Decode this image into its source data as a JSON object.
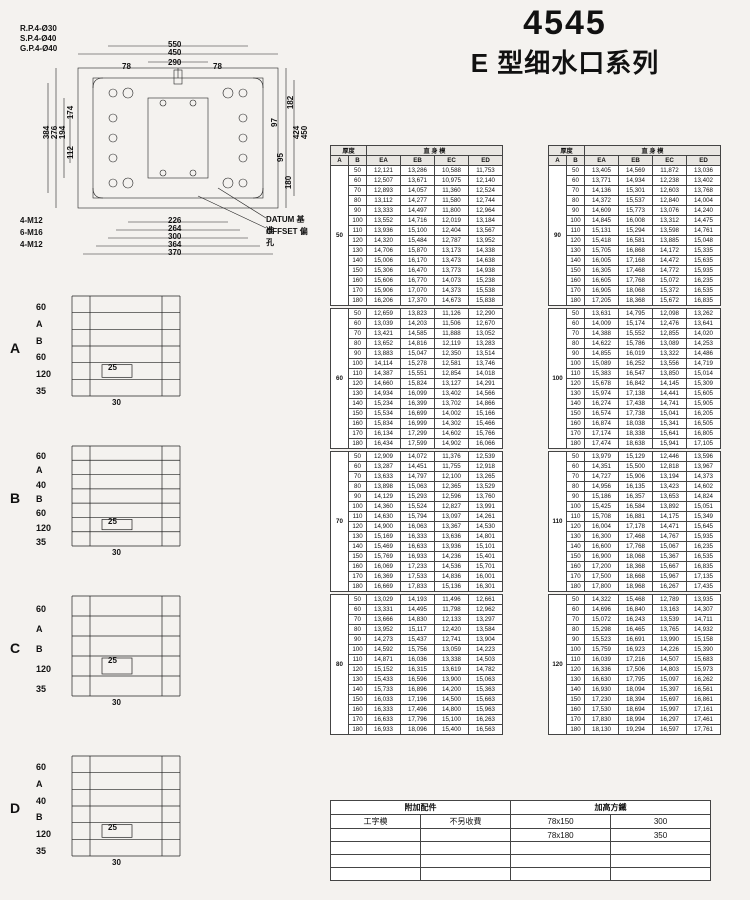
{
  "title": {
    "number": "4545",
    "text": "E 型细水口系列"
  },
  "drawing": {
    "notes": [
      "R.P.4-Ø30",
      "S.P.4-Ø40",
      "G.P.4-Ø40"
    ],
    "datum_label": "DATUM 基准",
    "offset_label": "OFFSET 偏孔",
    "top_dims": [
      "550",
      "450",
      "290"
    ],
    "inner_dims": [
      "78",
      "78"
    ],
    "left_dims": [
      "384",
      "276",
      "194",
      "174",
      "112"
    ],
    "right_dims": [
      "180",
      "95",
      "424",
      "450",
      "97",
      "182"
    ],
    "bottom_dims": [
      "226",
      "264",
      "300",
      "364",
      "370"
    ],
    "bolt_labels": [
      "4-M12",
      "6-M16",
      "4-M12"
    ]
  },
  "variants": [
    {
      "id": "A",
      "rows": [
        "60",
        "A",
        "B",
        "60",
        "120",
        "35"
      ],
      "inner25": "25",
      "inner30": "30"
    },
    {
      "id": "B",
      "rows": [
        "60",
        "A",
        "40",
        "B",
        "60",
        "120",
        "35"
      ],
      "inner25": "25",
      "inner30": "30"
    },
    {
      "id": "C",
      "rows": [
        "60",
        "A",
        "B",
        "120",
        "35"
      ],
      "inner25": "25",
      "inner30": "30"
    },
    {
      "id": "D",
      "rows": [
        "60",
        "A",
        "40",
        "B",
        "120",
        "35"
      ],
      "inner25": "25",
      "inner30": "30"
    }
  ],
  "table_header": {
    "thickness": "厚度",
    "span": "直 身 模",
    "cols": [
      "A",
      "B",
      "EA",
      "EB",
      "EC",
      "ED"
    ]
  },
  "left_table": {
    "groups": [
      {
        "a": 50,
        "rows": [
          [
            50,
            "12,121",
            "13,286",
            "10,588",
            "11,753"
          ],
          [
            60,
            "12,507",
            "13,671",
            "10,975",
            "12,140"
          ],
          [
            70,
            "12,893",
            "14,057",
            "11,360",
            "12,524"
          ],
          [
            80,
            "13,112",
            "14,277",
            "11,580",
            "12,744"
          ],
          [
            90,
            "13,333",
            "14,497",
            "11,800",
            "12,964"
          ],
          [
            100,
            "13,552",
            "14,716",
            "12,019",
            "13,184"
          ],
          [
            110,
            "13,936",
            "15,100",
            "12,404",
            "13,567"
          ],
          [
            120,
            "14,320",
            "15,484",
            "12,787",
            "13,952"
          ],
          [
            130,
            "14,706",
            "15,870",
            "13,173",
            "14,338"
          ],
          [
            140,
            "15,006",
            "16,170",
            "13,473",
            "14,638"
          ],
          [
            150,
            "15,306",
            "16,470",
            "13,773",
            "14,938"
          ],
          [
            160,
            "15,606",
            "16,770",
            "14,073",
            "15,238"
          ],
          [
            170,
            "15,906",
            "17,070",
            "14,373",
            "15,538"
          ],
          [
            180,
            "16,206",
            "17,370",
            "14,673",
            "15,838"
          ]
        ]
      },
      {
        "a": 60,
        "rows": [
          [
            50,
            "12,659",
            "13,823",
            "11,126",
            "12,290"
          ],
          [
            60,
            "13,039",
            "14,203",
            "11,506",
            "12,670"
          ],
          [
            70,
            "13,421",
            "14,585",
            "11,888",
            "13,052"
          ],
          [
            80,
            "13,652",
            "14,816",
            "12,119",
            "13,283"
          ],
          [
            90,
            "13,883",
            "15,047",
            "12,350",
            "13,514"
          ],
          [
            100,
            "14,114",
            "15,278",
            "12,581",
            "13,746"
          ],
          [
            110,
            "14,387",
            "15,551",
            "12,854",
            "14,018"
          ],
          [
            120,
            "14,660",
            "15,824",
            "13,127",
            "14,291"
          ],
          [
            130,
            "14,934",
            "16,099",
            "13,402",
            "14,566"
          ],
          [
            140,
            "15,234",
            "16,399",
            "13,702",
            "14,866"
          ],
          [
            150,
            "15,534",
            "16,699",
            "14,002",
            "15,166"
          ],
          [
            160,
            "15,834",
            "16,999",
            "14,302",
            "15,466"
          ],
          [
            170,
            "16,134",
            "17,299",
            "14,602",
            "15,766"
          ],
          [
            180,
            "16,434",
            "17,599",
            "14,902",
            "16,066"
          ]
        ]
      },
      {
        "a": 70,
        "rows": [
          [
            50,
            "12,909",
            "14,072",
            "11,376",
            "12,539"
          ],
          [
            60,
            "13,287",
            "14,451",
            "11,755",
            "12,918"
          ],
          [
            70,
            "13,633",
            "14,797",
            "12,100",
            "13,265"
          ],
          [
            80,
            "13,898",
            "15,063",
            "12,365",
            "13,529"
          ],
          [
            90,
            "14,129",
            "15,293",
            "12,596",
            "13,760"
          ],
          [
            100,
            "14,360",
            "15,524",
            "12,827",
            "13,991"
          ],
          [
            110,
            "14,630",
            "15,794",
            "13,097",
            "14,261"
          ],
          [
            120,
            "14,900",
            "16,063",
            "13,367",
            "14,530"
          ],
          [
            130,
            "15,169",
            "16,333",
            "13,636",
            "14,801"
          ],
          [
            140,
            "15,469",
            "16,633",
            "13,936",
            "15,101"
          ],
          [
            150,
            "15,769",
            "16,933",
            "14,236",
            "15,401"
          ],
          [
            160,
            "16,069",
            "17,233",
            "14,536",
            "15,701"
          ],
          [
            170,
            "16,369",
            "17,533",
            "14,836",
            "16,001"
          ],
          [
            180,
            "16,669",
            "17,833",
            "15,136",
            "16,301"
          ]
        ]
      },
      {
        "a": 80,
        "rows": [
          [
            50,
            "13,029",
            "14,193",
            "11,496",
            "12,661"
          ],
          [
            60,
            "13,331",
            "14,495",
            "11,798",
            "12,962"
          ],
          [
            70,
            "13,666",
            "14,830",
            "12,133",
            "13,297"
          ],
          [
            80,
            "13,952",
            "15,117",
            "12,420",
            "13,584"
          ],
          [
            90,
            "14,273",
            "15,437",
            "12,741",
            "13,904"
          ],
          [
            100,
            "14,592",
            "15,756",
            "13,059",
            "14,223"
          ],
          [
            110,
            "14,871",
            "16,036",
            "13,338",
            "14,503"
          ],
          [
            120,
            "15,152",
            "16,315",
            "13,619",
            "14,782"
          ],
          [
            130,
            "15,433",
            "16,596",
            "13,900",
            "15,063"
          ],
          [
            140,
            "15,733",
            "16,896",
            "14,200",
            "15,363"
          ],
          [
            150,
            "16,033",
            "17,196",
            "14,500",
            "15,663"
          ],
          [
            160,
            "16,333",
            "17,496",
            "14,800",
            "15,963"
          ],
          [
            170,
            "16,633",
            "17,796",
            "15,100",
            "16,263"
          ],
          [
            180,
            "16,933",
            "18,096",
            "15,400",
            "16,563"
          ]
        ]
      }
    ]
  },
  "right_table": {
    "groups": [
      {
        "a": 90,
        "rows": [
          [
            50,
            "13,405",
            "14,569",
            "11,872",
            "13,036"
          ],
          [
            60,
            "13,771",
            "14,934",
            "12,238",
            "13,402"
          ],
          [
            70,
            "14,136",
            "15,301",
            "12,603",
            "13,768"
          ],
          [
            80,
            "14,372",
            "15,537",
            "12,840",
            "14,004"
          ],
          [
            90,
            "14,609",
            "15,773",
            "13,076",
            "14,240"
          ],
          [
            100,
            "14,845",
            "16,008",
            "13,312",
            "14,475"
          ],
          [
            110,
            "15,131",
            "15,294",
            "13,598",
            "14,761"
          ],
          [
            120,
            "15,418",
            "16,581",
            "13,885",
            "15,048"
          ],
          [
            130,
            "15,705",
            "16,868",
            "14,172",
            "15,335"
          ],
          [
            140,
            "16,005",
            "17,168",
            "14,472",
            "15,635"
          ],
          [
            150,
            "16,305",
            "17,468",
            "14,772",
            "15,935"
          ],
          [
            160,
            "16,605",
            "17,768",
            "15,072",
            "16,235"
          ],
          [
            170,
            "16,905",
            "18,068",
            "15,372",
            "16,535"
          ],
          [
            180,
            "17,205",
            "18,368",
            "15,672",
            "16,835"
          ]
        ]
      },
      {
        "a": 100,
        "rows": [
          [
            50,
            "13,631",
            "14,795",
            "12,098",
            "13,262"
          ],
          [
            60,
            "14,009",
            "15,174",
            "12,476",
            "13,641"
          ],
          [
            70,
            "14,388",
            "15,552",
            "12,855",
            "14,020"
          ],
          [
            80,
            "14,622",
            "15,786",
            "13,089",
            "14,253"
          ],
          [
            90,
            "14,855",
            "16,019",
            "13,322",
            "14,486"
          ],
          [
            100,
            "15,089",
            "16,252",
            "13,556",
            "14,719"
          ],
          [
            110,
            "15,383",
            "16,547",
            "13,850",
            "15,014"
          ],
          [
            120,
            "15,678",
            "16,842",
            "14,145",
            "15,309"
          ],
          [
            130,
            "15,974",
            "17,138",
            "14,441",
            "15,605"
          ],
          [
            140,
            "16,274",
            "17,438",
            "14,741",
            "15,905"
          ],
          [
            150,
            "16,574",
            "17,738",
            "15,041",
            "16,205"
          ],
          [
            160,
            "16,874",
            "18,038",
            "15,341",
            "16,505"
          ],
          [
            170,
            "17,174",
            "18,338",
            "15,641",
            "16,805"
          ],
          [
            180,
            "17,474",
            "18,638",
            "15,941",
            "17,105"
          ]
        ]
      },
      {
        "a": 110,
        "rows": [
          [
            50,
            "13,979",
            "15,129",
            "12,446",
            "13,596"
          ],
          [
            60,
            "14,351",
            "15,500",
            "12,818",
            "13,967"
          ],
          [
            70,
            "14,727",
            "15,906",
            "13,194",
            "14,373"
          ],
          [
            80,
            "14,956",
            "16,135",
            "13,423",
            "14,602"
          ],
          [
            90,
            "15,186",
            "16,357",
            "13,653",
            "14,824"
          ],
          [
            100,
            "15,425",
            "16,584",
            "13,892",
            "15,051"
          ],
          [
            110,
            "15,708",
            "16,881",
            "14,175",
            "15,349"
          ],
          [
            120,
            "16,004",
            "17,178",
            "14,471",
            "15,645"
          ],
          [
            130,
            "16,300",
            "17,468",
            "14,767",
            "15,935"
          ],
          [
            140,
            "16,600",
            "17,768",
            "15,067",
            "16,235"
          ],
          [
            150,
            "16,900",
            "18,068",
            "15,367",
            "16,535"
          ],
          [
            160,
            "17,200",
            "18,368",
            "15,667",
            "16,835"
          ],
          [
            170,
            "17,500",
            "18,668",
            "15,967",
            "17,135"
          ],
          [
            180,
            "17,800",
            "18,968",
            "16,267",
            "17,435"
          ]
        ]
      },
      {
        "a": 120,
        "rows": [
          [
            50,
            "14,322",
            "15,468",
            "12,789",
            "13,935"
          ],
          [
            60,
            "14,696",
            "16,840",
            "13,163",
            "14,307"
          ],
          [
            70,
            "15,072",
            "16,243",
            "13,539",
            "14,711"
          ],
          [
            80,
            "15,298",
            "16,465",
            "13,765",
            "14,932"
          ],
          [
            90,
            "15,523",
            "16,691",
            "13,990",
            "15,158"
          ],
          [
            100,
            "15,759",
            "16,923",
            "14,226",
            "15,390"
          ],
          [
            110,
            "16,039",
            "17,216",
            "14,507",
            "15,683"
          ],
          [
            120,
            "16,336",
            "17,506",
            "14,803",
            "15,973"
          ],
          [
            130,
            "16,630",
            "17,795",
            "15,097",
            "16,262"
          ],
          [
            140,
            "16,930",
            "18,094",
            "15,397",
            "16,561"
          ],
          [
            150,
            "17,230",
            "18,394",
            "15,697",
            "16,861"
          ],
          [
            160,
            "17,530",
            "18,694",
            "15,997",
            "17,161"
          ],
          [
            170,
            "17,830",
            "18,994",
            "16,297",
            "17,461"
          ],
          [
            180,
            "18,130",
            "19,294",
            "16,597",
            "17,761"
          ]
        ]
      }
    ]
  },
  "accessory": {
    "h1": "附加配件",
    "h2": "加高方鐵",
    "sub1": "工字模",
    "sub2": "不另收費",
    "rows": [
      [
        "78x150",
        "300"
      ],
      [
        "78x180",
        "350"
      ],
      [
        "",
        ""
      ],
      [
        "",
        ""
      ],
      [
        "",
        ""
      ]
    ]
  },
  "colors": {
    "line": "#222",
    "bg": "#f4f2ef"
  }
}
